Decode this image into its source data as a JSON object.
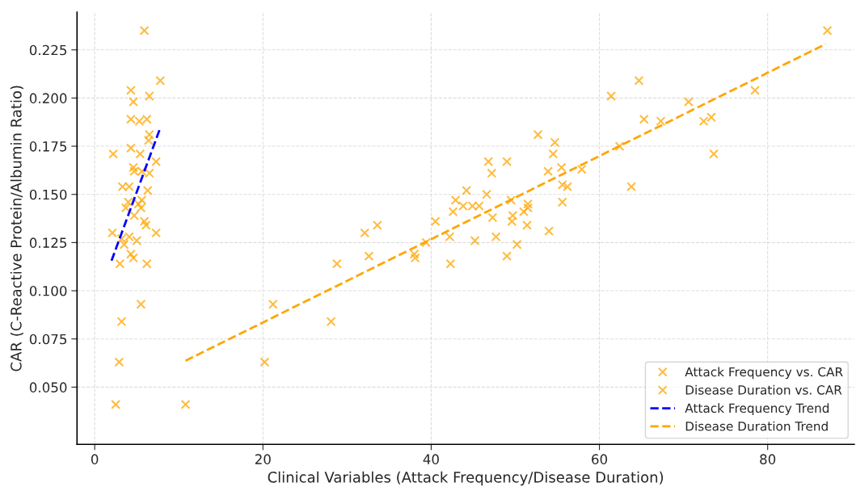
{
  "chart_data": {
    "type": "scatter",
    "xlabel": "Clinical Variables (Attack Frequency/Disease Duration)",
    "ylabel": "CAR (C-Reactive Protein/Albumin Ratio)",
    "xlim": [
      -2.1,
      90.3
    ],
    "ylim": [
      0.0203,
      0.2445
    ],
    "xticks": [
      0,
      20,
      40,
      60,
      80
    ],
    "yticks": [
      {
        "value": 0.05,
        "label": "0.050"
      },
      {
        "value": 0.075,
        "label": "0.075"
      },
      {
        "value": 0.1,
        "label": "0.100"
      },
      {
        "value": 0.125,
        "label": "0.125"
      },
      {
        "value": 0.15,
        "label": "0.150"
      },
      {
        "value": 0.175,
        "label": "0.175"
      },
      {
        "value": 0.2,
        "label": "0.200"
      },
      {
        "value": 0.225,
        "label": "0.225"
      }
    ],
    "grid": true,
    "legend": "bottom right",
    "series": [
      {
        "name": "Attack Frequency vs. CAR",
        "marker": "cross",
        "color": "#ffa500",
        "x": [
          5.9,
          7.8,
          4.3,
          6.5,
          4.6,
          4.3,
          5.3,
          6.2,
          6.5,
          6.4,
          2.2,
          4.3,
          5.4,
          7.3,
          4.6,
          4.7,
          5.6,
          6.5,
          3.3,
          4.1,
          6.3,
          4.0,
          5.6,
          3.7,
          5.2,
          5.5,
          4.7,
          5.9,
          6.1,
          2.1,
          7.3,
          4.1,
          3.2,
          5.0,
          3.5,
          4.3,
          4.6,
          3.0,
          6.2,
          5.5,
          3.2,
          2.9,
          2.5
        ],
        "values": [
          0.235,
          0.209,
          0.204,
          0.201,
          0.198,
          0.189,
          0.188,
          0.189,
          0.181,
          0.178,
          0.171,
          0.174,
          0.171,
          0.167,
          0.164,
          0.162,
          0.162,
          0.161,
          0.154,
          0.154,
          0.152,
          0.146,
          0.147,
          0.143,
          0.145,
          0.143,
          0.139,
          0.136,
          0.134,
          0.13,
          0.13,
          0.128,
          0.127,
          0.126,
          0.124,
          0.119,
          0.117,
          0.114,
          0.114,
          0.093,
          0.084,
          0.063,
          0.041
        ]
      },
      {
        "name": "Disease Duration vs. CAR",
        "marker": "cross",
        "color": "#ffa500",
        "x": [
          10.8,
          20.2,
          21.2,
          28.1,
          28.8,
          32.1,
          32.6,
          33.6,
          38.0,
          38.1,
          39.4,
          40.5,
          42.2,
          42.3,
          42.6,
          42.9,
          43.8,
          44.2,
          44.9,
          45.2,
          45.7,
          46.6,
          46.8,
          47.2,
          47.3,
          47.7,
          49.0,
          49.0,
          49.5,
          49.7,
          49.6,
          50.2,
          51.0,
          51.4,
          51.5,
          51.5,
          52.7,
          54.0,
          53.9,
          54.5,
          54.7,
          55.5,
          55.6,
          56.2,
          55.6,
          57.9,
          61.4,
          64.7,
          62.4,
          63.8,
          65.3,
          67.3,
          70.6,
          72.4,
          73.3,
          73.6,
          78.5,
          87.1
        ],
        "values": [
          0.041,
          0.063,
          0.093,
          0.084,
          0.114,
          0.13,
          0.118,
          0.134,
          0.119,
          0.117,
          0.125,
          0.136,
          0.128,
          0.114,
          0.141,
          0.147,
          0.144,
          0.152,
          0.144,
          0.126,
          0.144,
          0.15,
          0.167,
          0.161,
          0.138,
          0.128,
          0.167,
          0.118,
          0.147,
          0.139,
          0.136,
          0.124,
          0.141,
          0.134,
          0.145,
          0.143,
          0.181,
          0.131,
          0.162,
          0.171,
          0.177,
          0.164,
          0.155,
          0.154,
          0.146,
          0.163,
          0.201,
          0.209,
          0.175,
          0.154,
          0.189,
          0.188,
          0.198,
          0.188,
          0.19,
          0.171,
          0.204,
          0.235
        ]
      },
      {
        "name": "Attack Frequency Trend",
        "type": "line",
        "color": "#0000ff",
        "line_style": "dashed",
        "x": [
          2.0,
          7.8
        ],
        "values": [
          0.1156,
          0.1846
        ]
      },
      {
        "name": "Disease Duration Trend",
        "type": "line",
        "color": "#ffa500",
        "line_style": "dashed",
        "x": [
          10.8,
          86.9
        ],
        "values": [
          0.0637,
          0.228
        ]
      }
    ]
  }
}
